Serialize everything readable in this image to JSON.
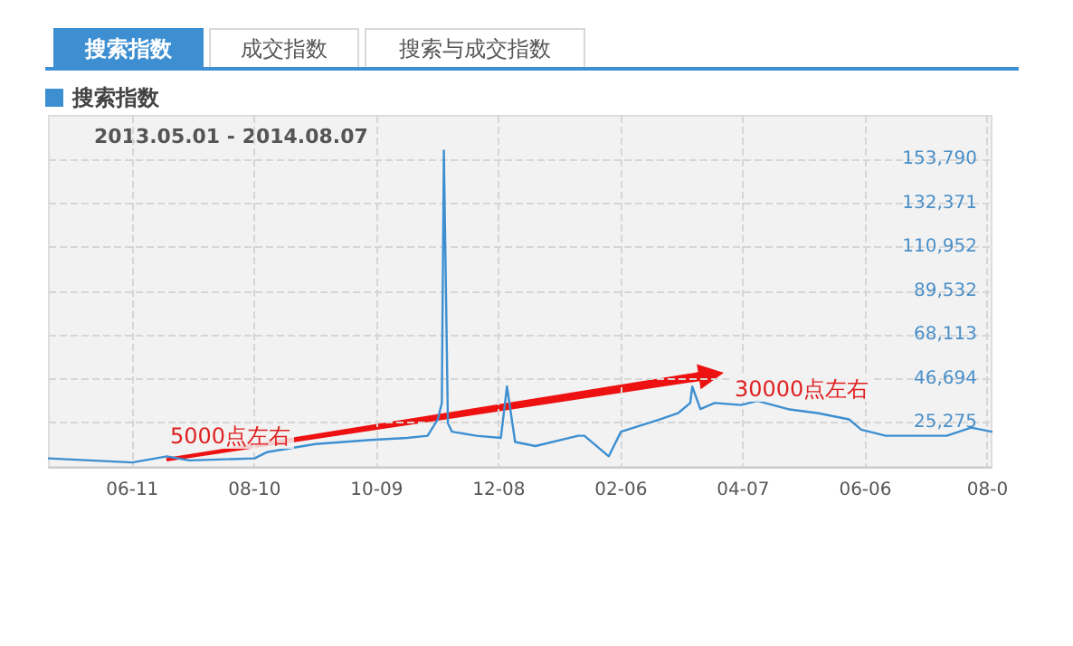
{
  "chart_data": {
    "type": "line",
    "subtitle": "2013.05.01 - 2014.08.07",
    "annotations": [
      "搜索指数",
      "成交指数",
      "搜索与成交指数",
      "5000点左右",
      "30000点左右"
    ],
    "series": [
      {
        "name": "搜索指数",
        "color": "#3d8fd1",
        "x": [
          "2013-05-01",
          "2013-06-11",
          "2013-06-28",
          "2013-07-09",
          "2013-08-10",
          "2013-08-16",
          "2013-09-09",
          "2013-10-06",
          "2013-10-24",
          "2013-11-03",
          "2013-11-08",
          "2013-11-10",
          "2013-11-11",
          "2013-11-13",
          "2013-11-15",
          "2013-11-27",
          "2013-12-09",
          "2013-12-12",
          "2013-12-16",
          "2013-12-26",
          "2014-01-16",
          "2014-01-19",
          "2014-01-31",
          "2014-02-06",
          "2014-02-25",
          "2014-03-06",
          "2014-03-12",
          "2014-03-13",
          "2014-03-17",
          "2014-03-24",
          "2014-04-06",
          "2014-04-14",
          "2014-04-29",
          "2014-05-14",
          "2014-05-29",
          "2014-06-04",
          "2014-06-16",
          "2014-07-04",
          "2014-07-16",
          "2014-07-28",
          "2014-08-07"
        ],
        "values": [
          8000,
          6000,
          9000,
          7000,
          8000,
          11000,
          15000,
          17000,
          18000,
          19000,
          27000,
          35000,
          158000,
          25000,
          21000,
          19000,
          18000,
          43000,
          16000,
          14000,
          19000,
          19000,
          9000,
          21000,
          27000,
          30000,
          35000,
          43000,
          32000,
          35000,
          34000,
          36000,
          32000,
          30000,
          27000,
          22000,
          19000,
          19000,
          19000,
          23000,
          21000
        ]
      }
    ],
    "xlim": [
      "2013-05-01",
      "2014-08-07"
    ],
    "xticks": [
      {
        "value": "2013-06-11",
        "label": "06-11"
      },
      {
        "value": "2013-08-10",
        "label": "08-10"
      },
      {
        "value": "2013-10-09",
        "label": "10-09"
      },
      {
        "value": "2013-12-08",
        "label": "12-08"
      },
      {
        "value": "2014-02-06",
        "label": "02-06"
      },
      {
        "value": "2014-04-07",
        "label": "04-07"
      },
      {
        "value": "2014-06-06",
        "label": "06-06"
      },
      {
        "value": "2014-08-05",
        "label": "08-0"
      }
    ],
    "ylim": [
      3856,
      175000
    ],
    "yticks": [
      {
        "value": 25275,
        "label": "25,275"
      },
      {
        "value": 46694,
        "label": "46,694"
      },
      {
        "value": 68113,
        "label": "68,113"
      },
      {
        "value": 89532,
        "label": "89,532"
      },
      {
        "value": 110952,
        "label": "110,952"
      },
      {
        "value": 132371,
        "label": "132,371"
      },
      {
        "value": 153790,
        "label": "153,790"
      }
    ],
    "grid": true,
    "legend": "top left",
    "marker": "none",
    "line_style": "solid"
  }
}
